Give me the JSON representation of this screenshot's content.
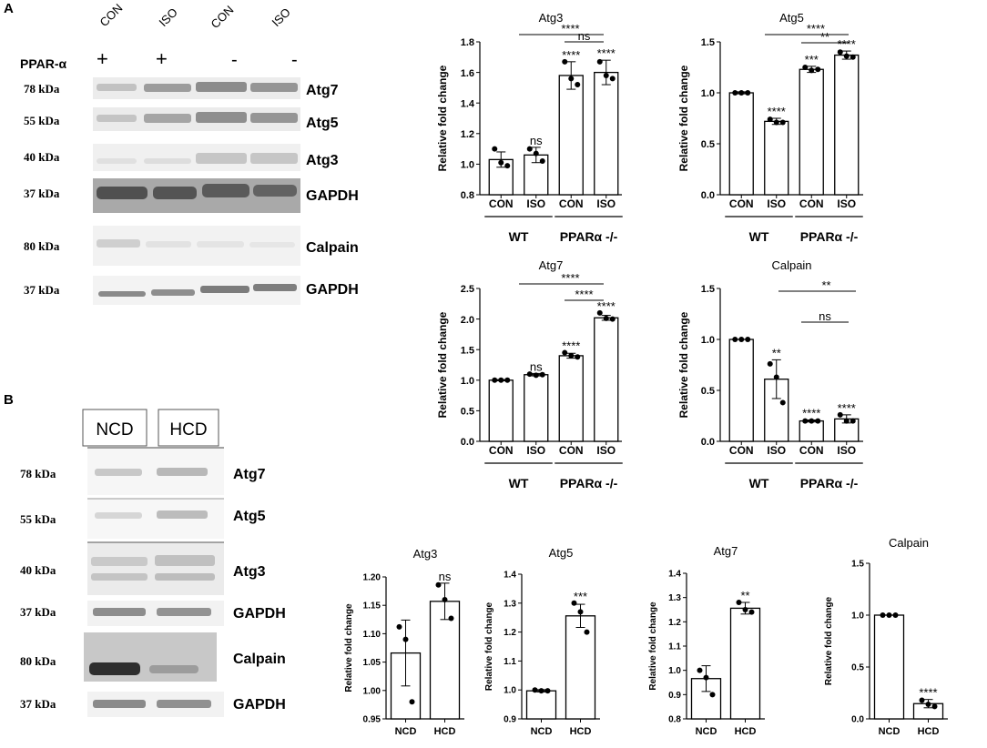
{
  "panel_a_label": "A",
  "panel_b_label": "B",
  "blot_a": {
    "lane_labels": [
      "CON",
      "ISO",
      "CON",
      "ISO"
    ],
    "ppar_label": "PPAR-α",
    "ppar_signs": [
      "+",
      "+",
      "-",
      "-"
    ],
    "rows": [
      {
        "kda": "78 kDa",
        "protein": "Atg7"
      },
      {
        "kda": "55 kDa",
        "protein": "Atg5"
      },
      {
        "kda": "40 kDa",
        "protein": "Atg3"
      },
      {
        "kda": "37 kDa",
        "protein": "GAPDH"
      },
      {
        "kda": "80 kDa",
        "protein": "Calpain"
      },
      {
        "kda": "37 kDa",
        "protein": "GAPDH"
      }
    ]
  },
  "blot_b": {
    "lane_labels": [
      "NCD",
      "HCD"
    ],
    "rows": [
      {
        "kda": "78 kDa",
        "protein": "Atg7"
      },
      {
        "kda": "55 kDa",
        "protein": "Atg5"
      },
      {
        "kda": "40 kDa",
        "protein": "Atg3"
      },
      {
        "kda": "37 kDa",
        "protein": "GAPDH"
      },
      {
        "kda": "80 kDa",
        "protein": "Calpain"
      },
      {
        "kda": "37 kDa",
        "protein": "GAPDH"
      }
    ]
  },
  "chart_data": [
    {
      "type": "bar",
      "title": "Atg3",
      "ylabel": "Relative fold change",
      "categories": [
        "CON",
        "ISO",
        "CON",
        "ISO"
      ],
      "groups": [
        "WT",
        "PPARα -/-"
      ],
      "values": [
        1.03,
        1.06,
        1.58,
        1.6
      ],
      "errors": [
        0.05,
        0.05,
        0.09,
        0.08
      ],
      "points": [
        [
          1.1,
          1.01,
          0.99
        ],
        [
          1.1,
          1.07,
          1.02
        ],
        [
          1.67,
          1.56,
          1.52
        ],
        [
          1.67,
          1.58,
          1.56
        ]
      ],
      "ylim": [
        0.8,
        1.8
      ],
      "yticks": [
        "0.8",
        "1.0",
        "1.2",
        "1.4",
        "1.6",
        "1.8"
      ],
      "bar_labels": [
        "",
        "ns",
        "****",
        "****"
      ],
      "comparisons": [
        {
          "from": 1,
          "to": 3,
          "label": "****"
        },
        {
          "from": 2,
          "to": 3,
          "label": "ns"
        }
      ]
    },
    {
      "type": "bar",
      "title": "Atg5",
      "ylabel": "Relative fold change",
      "categories": [
        "CON",
        "ISO",
        "CON",
        "ISO"
      ],
      "groups": [
        "WT",
        "PPARα -/-"
      ],
      "values": [
        1.0,
        0.72,
        1.23,
        1.37
      ],
      "errors": [
        0.01,
        0.03,
        0.03,
        0.04
      ],
      "points": [
        [
          1.0,
          1.0,
          1.0
        ],
        [
          0.74,
          0.71,
          0.71
        ],
        [
          1.25,
          1.22,
          1.23
        ],
        [
          1.4,
          1.36,
          1.35
        ]
      ],
      "ylim": [
        0.0,
        1.5
      ],
      "yticks": [
        "0.0",
        "0.5",
        "1.0",
        "1.5"
      ],
      "bar_labels": [
        "",
        "****",
        "***",
        "****"
      ],
      "comparisons": [
        {
          "from": 1,
          "to": 3,
          "label": "****"
        },
        {
          "from": 2,
          "to": 3,
          "label": "**"
        }
      ]
    },
    {
      "type": "bar",
      "title": "Atg7",
      "ylabel": "Relative fold change",
      "categories": [
        "CON",
        "ISO",
        "CON",
        "ISO"
      ],
      "groups": [
        "WT",
        "PPARα -/-"
      ],
      "values": [
        1.0,
        1.09,
        1.4,
        2.02
      ],
      "errors": [
        0.01,
        0.02,
        0.04,
        0.04
      ],
      "points": [
        [
          1.0,
          1.0,
          1.0
        ],
        [
          1.1,
          1.08,
          1.09
        ],
        [
          1.45,
          1.4,
          1.38
        ],
        [
          2.1,
          2.01,
          2.0
        ]
      ],
      "ylim": [
        0.0,
        2.5
      ],
      "yticks": [
        "0.0",
        "0.5",
        "1.0",
        "1.5",
        "2.0",
        "2.5"
      ],
      "bar_labels": [
        "",
        "ns",
        "****",
        "****"
      ],
      "comparisons": [
        {
          "from": 1,
          "to": 3,
          "label": "****"
        },
        {
          "from": 2,
          "to": 3,
          "label": "****"
        }
      ]
    },
    {
      "type": "bar",
      "title": "Calpain",
      "ylabel": "Relative fold change",
      "categories": [
        "CON",
        "ISO",
        "CON",
        "ISO"
      ],
      "groups": [
        "WT",
        "PPARα -/-"
      ],
      "values": [
        1.0,
        0.61,
        0.2,
        0.22
      ],
      "errors": [
        0.0,
        0.19,
        0.01,
        0.04
      ],
      "points": [
        [
          1.0,
          1.0,
          1.0
        ],
        [
          0.76,
          0.63,
          0.38
        ],
        [
          0.2,
          0.2,
          0.2
        ],
        [
          0.26,
          0.2,
          0.2
        ]
      ],
      "ylim": [
        0.0,
        1.5
      ],
      "yticks": [
        "0.0",
        "0.5",
        "1.0",
        "1.5"
      ],
      "bar_labels": [
        "",
        "**",
        "****",
        "****"
      ],
      "comparisons": [
        {
          "from": 1,
          "to": 3,
          "label": "**"
        },
        {
          "from": 2,
          "to": 3,
          "label": "ns"
        }
      ]
    },
    {
      "type": "bar",
      "title": "Atg3",
      "ylabel": "Relative fold change",
      "categories": [
        "NCD",
        "HCD"
      ],
      "values": [
        1.066,
        1.157
      ],
      "errors": [
        0.058,
        0.032
      ],
      "points": [
        [
          1.112,
          1.09,
          0.98
        ],
        [
          1.186,
          1.16,
          1.127
        ]
      ],
      "ylim": [
        0.95,
        1.2
      ],
      "yticks": [
        "0.95",
        "1.00",
        "1.05",
        "1.10",
        "1.15",
        "1.20"
      ],
      "bar_labels": [
        "",
        "ns"
      ]
    },
    {
      "type": "bar",
      "title": "Atg5",
      "ylabel": "Relative fold change",
      "categories": [
        "NCD",
        "HCD"
      ],
      "values": [
        0.997,
        1.256
      ],
      "errors": [
        0.004,
        0.04
      ],
      "points": [
        [
          1.0,
          0.997,
          0.997
        ],
        [
          1.3,
          1.27,
          1.2
        ]
      ],
      "ylim": [
        0.9,
        1.4
      ],
      "yticks": [
        "0.9",
        "1.0",
        "1.1",
        "1.2",
        "1.3",
        "1.4"
      ],
      "bar_labels": [
        "",
        "***"
      ]
    },
    {
      "type": "bar",
      "title": "Atg7",
      "ylabel": "Relative fold change",
      "categories": [
        "NCD",
        "HCD"
      ],
      "values": [
        0.966,
        1.256
      ],
      "errors": [
        0.053,
        0.024
      ],
      "points": [
        [
          1.0,
          0.97,
          0.9
        ],
        [
          1.28,
          1.25,
          1.24
        ]
      ],
      "ylim": [
        0.8,
        1.4
      ],
      "yticks": [
        "0.8",
        "0.9",
        "1.0",
        "1.1",
        "1.2",
        "1.3",
        "1.4"
      ],
      "bar_labels": [
        "",
        "**"
      ]
    },
    {
      "type": "bar",
      "title": "Calpain",
      "ylabel": "Relative fold change",
      "categories": [
        "NCD",
        "HCD"
      ],
      "values": [
        1.0,
        0.147
      ],
      "errors": [
        0.0,
        0.04
      ],
      "points": [
        [
          1.0,
          1.0,
          1.0
        ],
        [
          0.18,
          0.14,
          0.12
        ]
      ],
      "ylim": [
        0.0,
        1.5
      ],
      "yticks": [
        "0.0",
        "0.5",
        "1.0",
        "1.5"
      ],
      "bar_labels": [
        "",
        "****"
      ]
    }
  ]
}
